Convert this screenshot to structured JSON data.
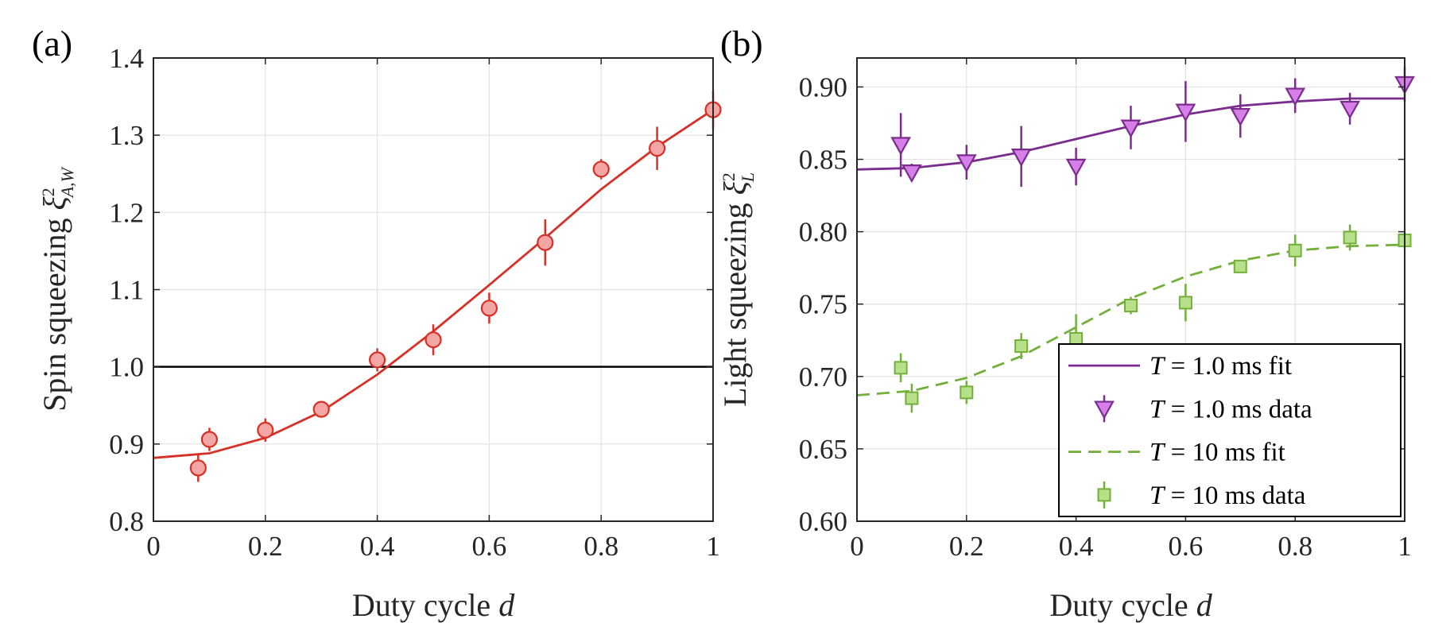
{
  "chart_data": [
    {
      "type": "scatter",
      "panel_label": "(a)",
      "xlabel": "Duty cycle",
      "xlabel_var": "d",
      "ylabel": "Spin squeezing",
      "ylabel_sym": "ξ",
      "ylabel_sup": "2",
      "ylabel_sub": "A,W",
      "xlim": [
        0,
        1
      ],
      "ylim": [
        0.8,
        1.4
      ],
      "xticks": [
        0,
        0.2,
        0.4,
        0.6,
        0.8,
        1
      ],
      "xtick_labels": [
        "0",
        "0.2",
        "0.4",
        "0.6",
        "0.8",
        "1"
      ],
      "yticks": [
        0.8,
        0.9,
        1.0,
        1.1,
        1.2,
        1.3,
        1.4
      ],
      "ytick_labels": [
        "0.8",
        "0.9",
        "1.0",
        "1.1",
        "1.2",
        "1.3",
        "1.4"
      ],
      "grid": true,
      "reference_line": {
        "y": 1.0,
        "color": "#000000"
      },
      "series": [
        {
          "kind": "points",
          "marker": "circle",
          "color": "#d73027",
          "fill": "#f4a6a4",
          "x": [
            0.08,
            0.1,
            0.2,
            0.3,
            0.4,
            0.5,
            0.6,
            0.7,
            0.8,
            0.9,
            1.0
          ],
          "y": [
            0.869,
            0.906,
            0.918,
            0.945,
            1.009,
            1.035,
            1.076,
            1.161,
            1.256,
            1.283,
            1.333
          ],
          "err": [
            0.018,
            0.015,
            0.015,
            0.006,
            0.015,
            0.02,
            0.02,
            0.03,
            0.013,
            0.028,
            0.025
          ]
        },
        {
          "kind": "line",
          "color": "#d73027",
          "x": [
            0,
            0.1,
            0.2,
            0.3,
            0.4,
            0.5,
            0.6,
            0.7,
            0.8,
            0.9,
            1.0
          ],
          "y": [
            0.882,
            0.888,
            0.908,
            0.942,
            0.99,
            1.046,
            1.106,
            1.167,
            1.23,
            1.285,
            1.333
          ]
        }
      ]
    },
    {
      "type": "scatter",
      "panel_label": "(b)",
      "xlabel": "Duty cycle",
      "xlabel_var": "d",
      "ylabel": "Light squeezing",
      "ylabel_sym": "ξ",
      "ylabel_sup": "2",
      "ylabel_sub": "L",
      "xlim": [
        0,
        1
      ],
      "ylim": [
        0.6,
        0.92
      ],
      "xticks": [
        0,
        0.2,
        0.4,
        0.6,
        0.8,
        1
      ],
      "xtick_labels": [
        "0",
        "0.2",
        "0.4",
        "0.6",
        "0.8",
        "1"
      ],
      "yticks": [
        0.6,
        0.65,
        0.7,
        0.75,
        0.8,
        0.85,
        0.9
      ],
      "ytick_labels": [
        "0.60",
        "0.65",
        "0.70",
        "0.75",
        "0.80",
        "0.85",
        "0.90"
      ],
      "grid": true,
      "legend_position": "bottom-right",
      "series": [
        {
          "name": "T = 1.0 ms fit",
          "kind": "line",
          "color": "#7b2d8e",
          "dash": "solid",
          "x": [
            0,
            0.1,
            0.2,
            0.3,
            0.4,
            0.5,
            0.6,
            0.7,
            0.8,
            0.9,
            1.0
          ],
          "y": [
            0.843,
            0.844,
            0.848,
            0.855,
            0.864,
            0.873,
            0.881,
            0.887,
            0.89,
            0.892,
            0.892
          ]
        },
        {
          "name": "T = 1.0 ms data",
          "kind": "points",
          "marker": "triangle-down",
          "color": "#7b2d8e",
          "fill": "#d67fe8",
          "x": [
            0.08,
            0.1,
            0.2,
            0.3,
            0.4,
            0.5,
            0.6,
            0.7,
            0.8,
            0.9,
            1.0
          ],
          "y": [
            0.86,
            0.841,
            0.848,
            0.852,
            0.845,
            0.872,
            0.883,
            0.88,
            0.894,
            0.885,
            0.902
          ],
          "err": [
            0.022,
            0.006,
            0.012,
            0.021,
            0.013,
            0.015,
            0.021,
            0.015,
            0.012,
            0.011,
            0.012
          ]
        },
        {
          "name": "T = 10 ms fit",
          "kind": "line",
          "color": "#73b03a",
          "dash": "dashed",
          "x": [
            0,
            0.1,
            0.2,
            0.3,
            0.4,
            0.5,
            0.6,
            0.7,
            0.8,
            0.9,
            1.0
          ],
          "y": [
            0.687,
            0.69,
            0.699,
            0.714,
            0.734,
            0.754,
            0.769,
            0.78,
            0.787,
            0.79,
            0.791
          ]
        },
        {
          "name": "T = 10 ms data",
          "kind": "points",
          "marker": "square",
          "color": "#73b03a",
          "fill": "#b8e08a",
          "x": [
            0.08,
            0.1,
            0.2,
            0.3,
            0.4,
            0.5,
            0.6,
            0.7,
            0.8,
            0.9,
            1.0
          ],
          "y": [
            0.706,
            0.685,
            0.689,
            0.721,
            0.726,
            0.749,
            0.751,
            0.776,
            0.787,
            0.796,
            0.794
          ],
          "err": [
            0.01,
            0.01,
            0.008,
            0.009,
            0.017,
            0.006,
            0.013,
            0.004,
            0.011,
            0.009,
            0.006
          ]
        }
      ],
      "legend": [
        {
          "label": "T = 1.0 ms fit",
          "lhs": "T",
          "rhs": "1.0 ms fit"
        },
        {
          "label": "T = 1.0 ms data",
          "lhs": "T",
          "rhs": "1.0 ms data"
        },
        {
          "label": "T = 10 ms fit",
          "lhs": "T",
          "rhs": "10 ms fit"
        },
        {
          "label": "T = 10 ms data",
          "lhs": "T",
          "rhs": "10 ms data"
        }
      ]
    }
  ]
}
